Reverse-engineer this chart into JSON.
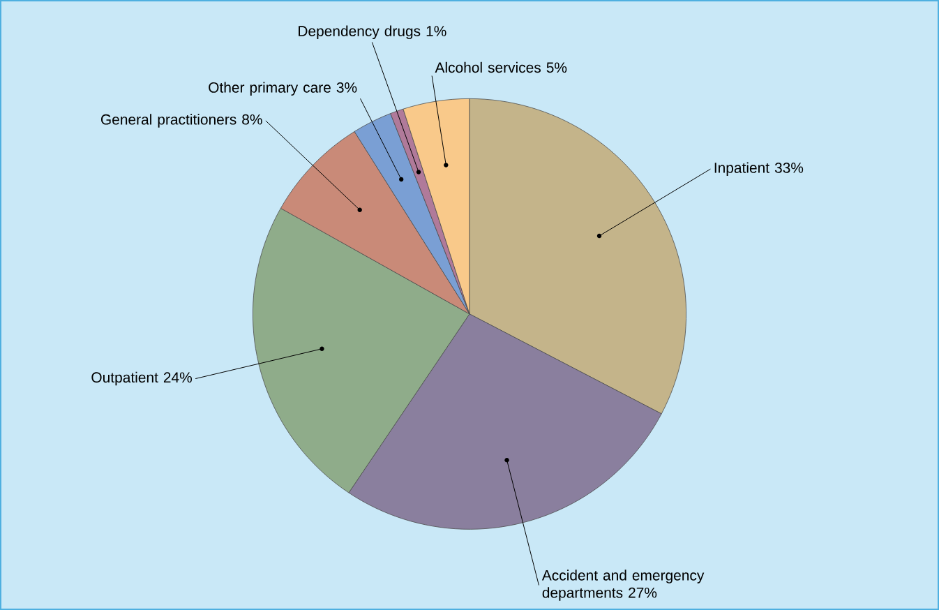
{
  "chart_data": {
    "type": "pie",
    "categories": [
      "Inpatient",
      "Accident and emergency departments",
      "Outpatient",
      "General practitioners",
      "Other primary care",
      "Dependency drugs",
      "Alcohol services"
    ],
    "values": [
      33,
      27,
      24,
      8,
      3,
      1,
      5
    ],
    "value_labels": [
      "33%",
      "27%",
      "24%",
      "8%",
      "3%",
      "1%",
      "5%"
    ],
    "colors": [
      "#c4b48a",
      "#8a7f9e",
      "#8fac8a",
      "#c98a78",
      "#7a9fd4",
      "#b07a9a",
      "#f9c98a"
    ]
  }
}
